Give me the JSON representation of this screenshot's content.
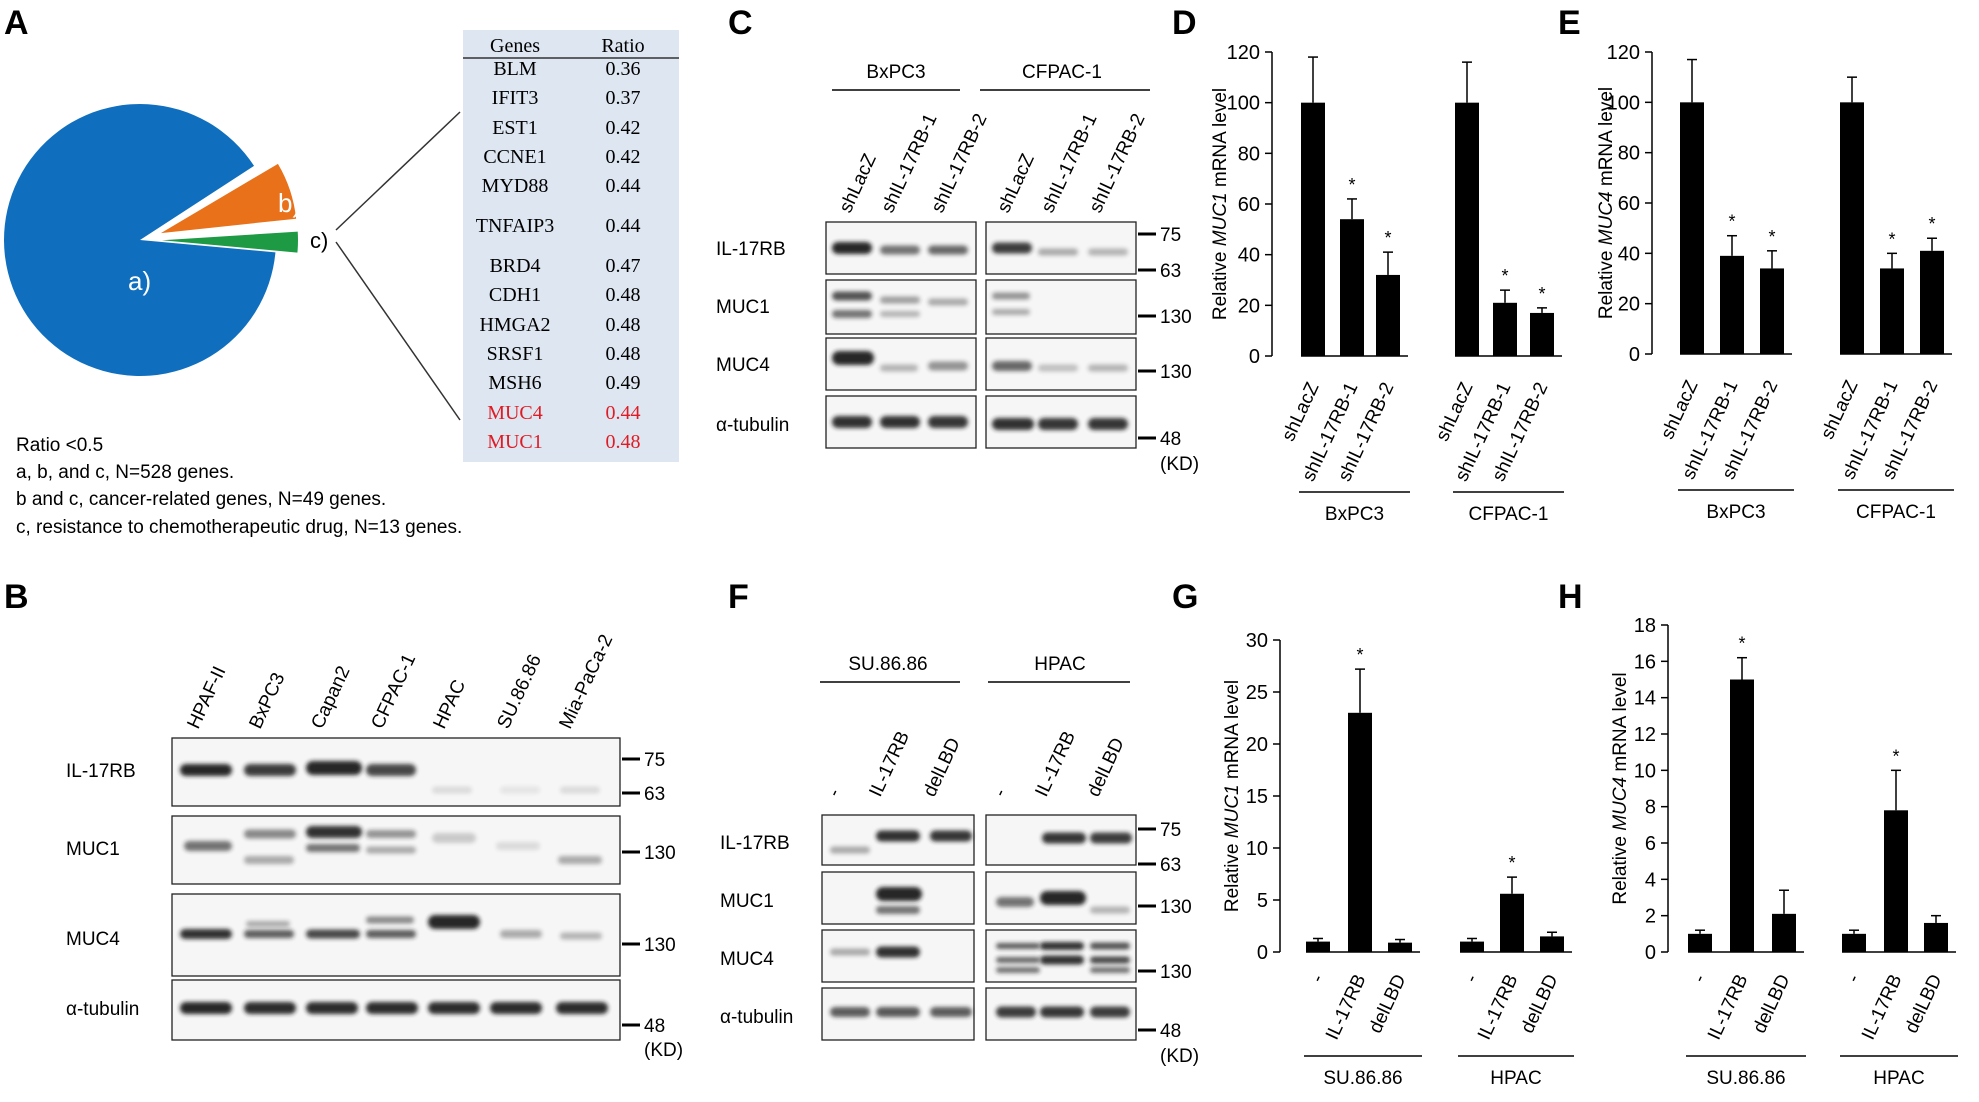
{
  "panel_letters": {
    "A": "A",
    "B": "B",
    "C": "C",
    "D": "D",
    "E": "E",
    "F": "F",
    "G": "G",
    "H": "H"
  },
  "panel_a": {
    "pie_labels": {
      "a": "a)",
      "b": "b)",
      "c": "c)"
    },
    "pie_values": {
      "a": 479,
      "b": 36,
      "c": 13
    },
    "colors": {
      "a": "#0f6fbe",
      "b": "#e8711a",
      "c": "#1e9a45"
    },
    "table": {
      "headers": [
        "Genes",
        "Ratio"
      ],
      "rows": [
        {
          "gene": "BLM",
          "ratio": "0.36",
          "highlight": false
        },
        {
          "gene": "IFIT3",
          "ratio": "0.37",
          "highlight": false
        },
        {
          "gene": "EST1",
          "ratio": "0.42",
          "highlight": false
        },
        {
          "gene": "CCNE1",
          "ratio": "0.42",
          "highlight": false
        },
        {
          "gene": "MYD88",
          "ratio": "0.44",
          "highlight": false
        },
        {
          "gene": "TNFAIP3",
          "ratio": "0.44",
          "highlight": false
        },
        {
          "gene": "BRD4",
          "ratio": "0.47",
          "highlight": false
        },
        {
          "gene": "CDH1",
          "ratio": "0.48",
          "highlight": false
        },
        {
          "gene": "HMGA2",
          "ratio": "0.48",
          "highlight": false
        },
        {
          "gene": "SRSF1",
          "ratio": "0.48",
          "highlight": false
        },
        {
          "gene": "MSH6",
          "ratio": "0.49",
          "highlight": false
        },
        {
          "gene": "MUC4",
          "ratio": "0.44",
          "highlight": true
        },
        {
          "gene": "MUC1",
          "ratio": "0.48",
          "highlight": true
        }
      ]
    },
    "notes": [
      "Ratio <0.5",
      "a, b, and c, N=528 genes.",
      "b and c, cancer-related genes, N=49 genes.",
      "c, resistance to chemotherapeutic drug, N=13 genes."
    ]
  },
  "panel_b": {
    "lanes": [
      "HPAF-II",
      "BxPC3",
      "Capan2",
      "CFPAC-1",
      "HPAC",
      "SU.86.86",
      "Mia-PaCa-2"
    ],
    "rows": [
      "IL-17RB",
      "MUC1",
      "MUC4",
      "α-tubulin"
    ],
    "markers": [
      "75",
      "63",
      "130",
      "130",
      "48"
    ],
    "kd": "(KD)"
  },
  "panel_c": {
    "groups": [
      "BxPC3",
      "CFPAC-1"
    ],
    "lanes": [
      "shLacZ",
      "shIL-17RB-1",
      "shIL-17RB-2",
      "shLacZ",
      "shIL-17RB-1",
      "shIL-17RB-2"
    ],
    "rows": [
      "IL-17RB",
      "MUC1",
      "MUC4",
      "α-tubulin"
    ],
    "markers": [
      "75",
      "63",
      "130",
      "130",
      "48"
    ],
    "kd": "(KD)"
  },
  "panel_f": {
    "groups": [
      "SU.86.86",
      "HPAC"
    ],
    "lanes": [
      "-",
      "IL-17RB",
      "delLBD",
      "-",
      "IL-17RB",
      "delLBD"
    ],
    "rows": [
      "IL-17RB",
      "MUC1",
      "MUC4",
      "α-tubulin"
    ],
    "markers": [
      "75",
      "63",
      "130",
      "130",
      "48"
    ],
    "kd": "(KD)"
  },
  "chart_data": [
    {
      "panel": "D",
      "type": "bar",
      "ylabel": "Relative MUC1 mRNA level",
      "ylabel_parts": [
        "Relative ",
        "MUC1",
        " mRNA level"
      ],
      "ylim": [
        0,
        120
      ],
      "yticks": [
        0,
        20,
        40,
        60,
        80,
        100,
        120
      ],
      "groups": [
        "BxPC3",
        "CFPAC-1"
      ],
      "categories": [
        "shLacZ",
        "shIL-17RB-1",
        "shIL-17RB-2"
      ],
      "series": [
        {
          "name": "BxPC3",
          "values": [
            100,
            54,
            32
          ],
          "errors": [
            18,
            8,
            9
          ],
          "sig": [
            "",
            "*",
            "*"
          ]
        },
        {
          "name": "CFPAC-1",
          "values": [
            100,
            21,
            17
          ],
          "errors": [
            16,
            5,
            2
          ],
          "sig": [
            "",
            "*",
            "*"
          ]
        }
      ]
    },
    {
      "panel": "E",
      "type": "bar",
      "ylabel": "Relative MUC4 mRNA level",
      "ylabel_parts": [
        "Relative ",
        "MUC4",
        " mRNA level"
      ],
      "ylim": [
        0,
        120
      ],
      "yticks": [
        0,
        20,
        40,
        60,
        80,
        100,
        120
      ],
      "groups": [
        "BxPC3",
        "CFPAC-1"
      ],
      "categories": [
        "shLacZ",
        "shIL-17RB-1",
        "shIL-17RB-2"
      ],
      "series": [
        {
          "name": "BxPC3",
          "values": [
            100,
            39,
            34
          ],
          "errors": [
            17,
            8,
            7
          ],
          "sig": [
            "",
            "*",
            "*"
          ]
        },
        {
          "name": "CFPAC-1",
          "values": [
            100,
            34,
            41
          ],
          "errors": [
            10,
            6,
            5
          ],
          "sig": [
            "",
            "*",
            "*"
          ]
        }
      ]
    },
    {
      "panel": "G",
      "type": "bar",
      "ylabel": "Relative MUC1 mRNA level",
      "ylabel_parts": [
        "Relative ",
        "MUC1",
        " mRNA level"
      ],
      "ylim": [
        0,
        30
      ],
      "yticks": [
        0,
        5,
        10,
        15,
        20,
        25,
        30
      ],
      "groups": [
        "SU.86.86",
        "HPAC"
      ],
      "categories": [
        "-",
        "IL-17RB",
        "delLBD"
      ],
      "series": [
        {
          "name": "SU.86.86",
          "values": [
            1,
            23,
            0.9
          ],
          "errors": [
            0.3,
            4.2,
            0.3
          ],
          "sig": [
            "",
            "*",
            ""
          ]
        },
        {
          "name": "HPAC",
          "values": [
            1,
            5.6,
            1.5
          ],
          "errors": [
            0.3,
            1.6,
            0.4
          ],
          "sig": [
            "",
            "*",
            ""
          ]
        }
      ]
    },
    {
      "panel": "H",
      "type": "bar",
      "ylabel": "Relative MUC4 mRNA level",
      "ylabel_parts": [
        "Relative ",
        "MUC4",
        " mRNA level"
      ],
      "ylim": [
        0,
        18
      ],
      "yticks": [
        0,
        2,
        4,
        6,
        8,
        10,
        12,
        14,
        16,
        18
      ],
      "groups": [
        "SU.86.86",
        "HPAC"
      ],
      "categories": [
        "-",
        "IL-17RB",
        "delLBD"
      ],
      "series": [
        {
          "name": "SU.86.86",
          "values": [
            1,
            15,
            2.1
          ],
          "errors": [
            0.2,
            1.2,
            1.3
          ],
          "sig": [
            "",
            "*",
            ""
          ]
        },
        {
          "name": "HPAC",
          "values": [
            1,
            7.8,
            1.6
          ],
          "errors": [
            0.2,
            2.2,
            0.4
          ],
          "sig": [
            "",
            "*",
            ""
          ]
        }
      ]
    }
  ]
}
